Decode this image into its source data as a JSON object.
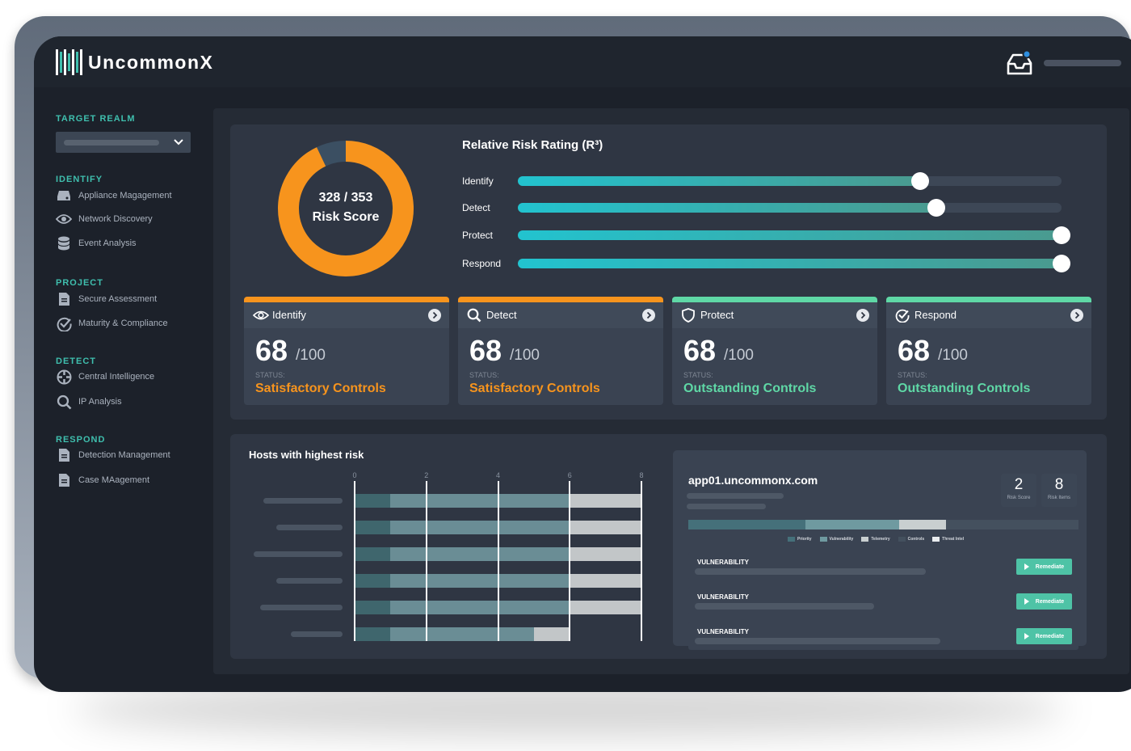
{
  "app": {
    "title": "UncommonX"
  },
  "sidebar": {
    "target_realm": {
      "heading": "TARGET REALM",
      "selected": ""
    },
    "sections": [
      {
        "heading": "IDENTIFY",
        "items": [
          {
            "label": "Appliance Magagement",
            "icon": "drive-icon"
          },
          {
            "label": "Network Discovery",
            "icon": "eye-icon"
          },
          {
            "label": "Event Analysis",
            "icon": "database-icon"
          }
        ]
      },
      {
        "heading": "PROJECT",
        "items": [
          {
            "label": "Secure Assessment",
            "icon": "document-icon"
          },
          {
            "label": "Maturity & Compliance",
            "icon": "check-circle-icon"
          }
        ]
      },
      {
        "heading": "DETECT",
        "items": [
          {
            "label": "Central Intelligence",
            "icon": "crosshair-icon"
          },
          {
            "label": "IP Analysis",
            "icon": "search-icon"
          }
        ]
      },
      {
        "heading": "RESPOND",
        "items": [
          {
            "label": "Detection Management",
            "icon": "document-icon"
          },
          {
            "label": "Case MAagement",
            "icon": "document-icon"
          }
        ]
      }
    ]
  },
  "risk": {
    "score_text": "328 / 353",
    "score_label": "Risk Score",
    "score": 328,
    "max": 353,
    "rating_title": "Relative Risk Rating (R³)",
    "sliders": [
      {
        "label": "Identify",
        "value": 0.74
      },
      {
        "label": "Detect",
        "value": 0.77
      },
      {
        "label": "Protect",
        "value": 1.0
      },
      {
        "label": "Respond",
        "value": 1.0
      }
    ]
  },
  "cards": [
    {
      "title": "Identify",
      "icon": "eye-icon",
      "score": "68",
      "max": "/100",
      "status_label": "STATUS:",
      "status": "Satisfactory Controls",
      "accent": "#f7941d"
    },
    {
      "title": "Detect",
      "icon": "search-icon",
      "score": "68",
      "max": "/100",
      "status_label": "STATUS:",
      "status": "Satisfactory Controls",
      "accent": "#f7941d"
    },
    {
      "title": "Protect",
      "icon": "shield-icon",
      "score": "68",
      "max": "/100",
      "status_label": "STATUS:",
      "status": "Outstanding Controls",
      "accent": "#5fd8a6"
    },
    {
      "title": "Respond",
      "icon": "check-circle-icon",
      "score": "68",
      "max": "/100",
      "status_label": "STATUS:",
      "status": "Outstanding Controls",
      "accent": "#5fd8a6"
    }
  ],
  "hosts": {
    "title": "Hosts with highest risk",
    "chart_data": {
      "type": "bar",
      "orientation": "horizontal",
      "stacked": true,
      "x_ticks": [
        "0",
        "2",
        "4",
        "6",
        "8"
      ],
      "xlim": [
        0,
        8
      ],
      "series_colors": [
        "#3f666d",
        "#6a8d95",
        "#c2c6c8"
      ],
      "rows": [
        [
          1,
          5,
          2
        ],
        [
          1,
          5,
          2
        ],
        [
          1,
          5,
          2
        ],
        [
          1,
          5,
          2
        ],
        [
          1,
          5,
          2
        ],
        [
          1,
          4,
          1
        ]
      ]
    }
  },
  "host_detail": {
    "hostname": "app01.uncommonx.com",
    "risk_score": "2",
    "risk_score_label": "Risk Score",
    "risk_items": "8",
    "risk_items_label": "Risk Items",
    "breakdown": [
      {
        "name": "Priority",
        "value": 0.3,
        "color": "#45707a"
      },
      {
        "name": "Vulnerability",
        "value": 0.24,
        "color": "#6f9aa0"
      },
      {
        "name": "Telemetry",
        "value": 0.12,
        "color": "#c9cfd0"
      },
      {
        "name": "Controls",
        "value": 0.34,
        "color": "#44505e"
      },
      {
        "name": "Threat Intel",
        "value": 0,
        "color": "#e9ecef"
      }
    ],
    "vulnerabilities": [
      {
        "label": "VULNERABILITY",
        "action": "Remediate"
      },
      {
        "label": "VULNERABILITY",
        "action": "Remediate"
      },
      {
        "label": "VULNERABILITY",
        "action": "Remediate"
      }
    ]
  }
}
